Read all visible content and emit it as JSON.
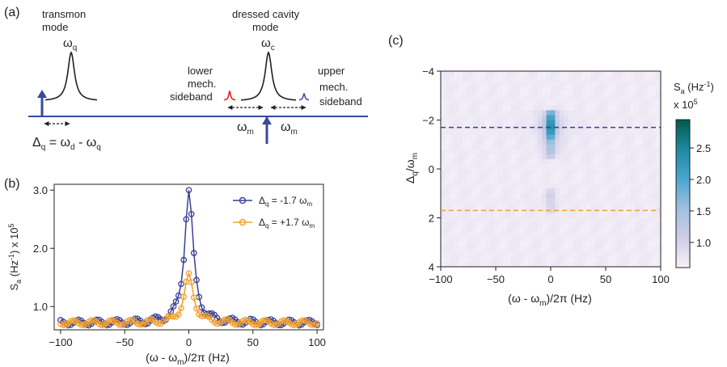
{
  "panel_labels": {
    "a": "(a)",
    "b": "(b)",
    "c": "(c)"
  },
  "schematic": {
    "transmon_label_1": "transmon",
    "transmon_label_2": "mode",
    "omega_q": "ω",
    "omega_q_sub": "q",
    "cavity_label_1": "dressed cavity",
    "cavity_label_2": "mode",
    "omega_c": "ω",
    "omega_c_sub": "c",
    "lower_sideband_1": "lower",
    "lower_sideband_2": "mech.",
    "lower_sideband_3": "sideband",
    "upper_sideband_1": "upper",
    "upper_sideband_2": "mech.",
    "upper_sideband_3": "sideband",
    "omega_m_left": "ω",
    "omega_m_left_sub": "m",
    "omega_m_right": "ω",
    "omega_m_right_sub": "m",
    "detuning_eq": "Δ",
    "detuning_eq_sub": "q",
    "detuning_eq_rest": " = ω",
    "detuning_eq_sub2": "d",
    "detuning_eq_rest2": " - ω",
    "detuning_eq_sub3": "q",
    "colors": {
      "line": "#3a4a9c",
      "lower_peak": "#e41a1c",
      "upper_peak": "#3a4a9c",
      "arrow": "#3a4a9c"
    }
  },
  "chart_data": [
    {
      "panel": "b",
      "type": "scatter",
      "xlabel": "(ω - ω",
      "xlabel_sub": "m",
      "xlabel_rest": ")/2π (Hz)",
      "ylabel": "S",
      "ylabel_sub": "a",
      "ylabel_rest": " (Hz",
      "ylabel_sup": "-1",
      "ylabel_rest2": ") x 10",
      "ylabel_sup2": "5",
      "xlim": [
        -105,
        105
      ],
      "ylim": [
        0.6,
        3.1
      ],
      "xticks": [
        -100,
        -50,
        0,
        50,
        100
      ],
      "xtick_labels": [
        "−100",
        "−50",
        "0",
        "50",
        "100"
      ],
      "yticks": [
        1.0,
        2.0,
        3.0
      ],
      "ytick_labels": [
        "1.0",
        "2.0",
        "3.0"
      ],
      "legend_position": "top-right",
      "series": [
        {
          "name": "Δ",
          "name_sub": "q",
          "name_rest": " = -1.7 ω",
          "name_sub2": "m",
          "color": "#3a3f96",
          "peak": 3.0,
          "width": 4.0,
          "baseline": 0.72,
          "ripple": 0.06
        },
        {
          "name": "Δ",
          "name_sub": "q",
          "name_rest": " = +1.7 ω",
          "name_sub2": "m",
          "color": "#f0a030",
          "peak": 1.52,
          "width": 4.5,
          "baseline": 0.72,
          "ripple": 0.05
        }
      ]
    },
    {
      "panel": "c",
      "type": "heatmap",
      "xlabel": "(ω - ω",
      "xlabel_sub": "m",
      "xlabel_rest": ")/2π (Hz)",
      "ylabel": "Δ",
      "ylabel_sub": "q",
      "ylabel_rest": "/ω",
      "ylabel_sub2": "m",
      "xlim": [
        -100,
        100
      ],
      "ylim": [
        4,
        -4
      ],
      "xticks": [
        -100,
        -50,
        0,
        50,
        100
      ],
      "xtick_labels": [
        "−100",
        "−50",
        "0",
        "50",
        "100"
      ],
      "yticks": [
        -4,
        -2,
        0,
        2,
        4
      ],
      "ytick_labels": [
        "−4",
        "−2",
        "0",
        "2",
        "4"
      ],
      "hlines": [
        {
          "y": -1.7,
          "color": "#3a3f96"
        },
        {
          "y": 1.7,
          "color": "#f0a030"
        }
      ],
      "colorbar": {
        "label": "S",
        "label_sub": "a",
        "label_rest": " (Hz",
        "label_sup": "-1",
        "label_rest2": ")",
        "label_line2": "x 10",
        "label_sup2": "5",
        "range": [
          0.6,
          2.95
        ],
        "ticks": [
          1.0,
          1.5,
          2.0,
          2.5
        ],
        "tick_labels": [
          "1.0",
          "1.5",
          "2.0",
          "2.5"
        ],
        "colors": [
          "#f7f2f9",
          "#d3d0e8",
          "#9fc0df",
          "#4aa5d0",
          "#1b8aa0",
          "#03594a"
        ]
      },
      "peak_profile": [
        {
          "y": -2.3,
          "value": 2.1
        },
        {
          "y": -2.1,
          "value": 2.5
        },
        {
          "y": -1.9,
          "value": 2.8
        },
        {
          "y": -1.7,
          "value": 2.95
        },
        {
          "y": -1.5,
          "value": 2.7
        },
        {
          "y": -1.3,
          "value": 2.3
        },
        {
          "y": -1.1,
          "value": 1.9
        },
        {
          "y": -0.9,
          "value": 1.7
        },
        {
          "y": -0.7,
          "value": 1.6
        },
        {
          "y": -0.5,
          "value": 1.3
        },
        {
          "y": 0.9,
          "value": 1.0
        },
        {
          "y": 1.1,
          "value": 1.15
        },
        {
          "y": 1.3,
          "value": 1.1
        },
        {
          "y": 1.5,
          "value": 1.05
        },
        {
          "y": 1.7,
          "value": 1.0
        }
      ]
    }
  ]
}
